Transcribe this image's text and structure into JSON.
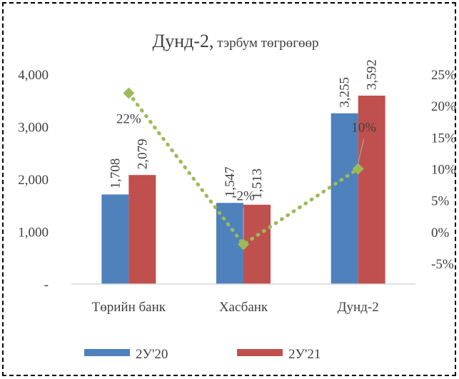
{
  "chart_data": {
    "type": "bar",
    "title_main": "Дунд-2,",
    "title_sub": " тэрбум төгрөгөөр",
    "categories": [
      "Төрийн банк",
      "Хасбанк",
      "Дунд-2"
    ],
    "series": [
      {
        "name": "2У'20",
        "values": [
          1708,
          1547,
          3255
        ],
        "value_labels": [
          "1,708",
          "1,547",
          "3,255"
        ],
        "color": "#4F81BD"
      },
      {
        "name": "2У'21",
        "values": [
          2079,
          1513,
          3592
        ],
        "value_labels": [
          "2,079",
          "1,513",
          "3,592"
        ],
        "color": "#C0504D"
      }
    ],
    "growth": {
      "values": [
        22,
        -2,
        10
      ],
      "value_labels": [
        "22%",
        "-2%",
        "10%"
      ],
      "color": "#9BBB59",
      "style": "dotted-line-with-diamond-markers"
    },
    "y_left": {
      "min": 0,
      "max": 4000,
      "ticks": [
        0,
        1000,
        2000,
        3000,
        4000
      ],
      "tick_labels": [
        "-",
        "1,000",
        "2,000",
        "3,000",
        "4,000"
      ]
    },
    "y_right": {
      "min": -5,
      "max": 25,
      "ticks": [
        -5,
        0,
        5,
        10,
        15,
        20,
        25
      ],
      "tick_labels": [
        "-5%",
        "0%",
        "5%",
        "10%",
        "15%",
        "20%",
        "25%"
      ]
    },
    "legend_position": "bottom",
    "grid": false
  }
}
